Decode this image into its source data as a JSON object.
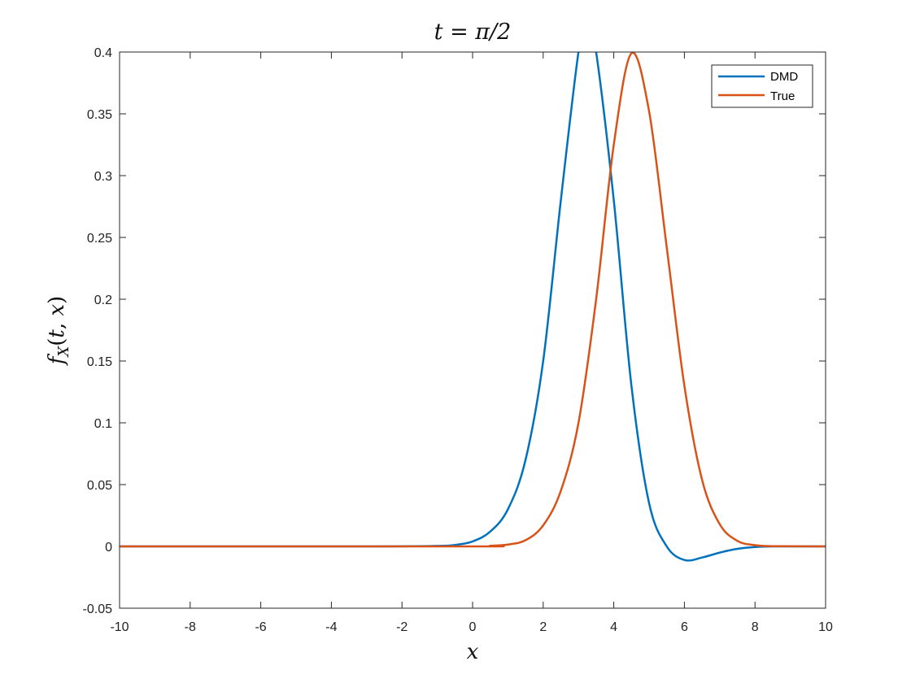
{
  "chart_data": {
    "type": "line",
    "title": "t = π/2",
    "xlabel": "x",
    "ylabel": "f_X(t,x)",
    "xlim": [
      -10,
      10
    ],
    "ylim": [
      -0.05,
      0.4
    ],
    "xticks": [
      -10,
      -8,
      -6,
      -4,
      -2,
      0,
      2,
      4,
      6,
      8,
      10
    ],
    "xtick_labels": [
      "-10",
      "-8",
      "-6",
      "-4",
      "-2",
      "0",
      "2",
      "4",
      "6",
      "8",
      "10"
    ],
    "yticks": [
      -0.05,
      0,
      0.05,
      0.1,
      0.15,
      0.2,
      0.25,
      0.3,
      0.35,
      0.4
    ],
    "ytick_labels": [
      "-0.05",
      "0",
      "0.05",
      "0.1",
      "0.15",
      "0.2",
      "0.25",
      "0.3",
      "0.35",
      "0.4"
    ],
    "grid": false,
    "legend_position": "top-right",
    "series": [
      {
        "name": "DMD",
        "color": "#0072BD",
        "points": [
          [
            -10,
            0
          ],
          [
            -3,
            0
          ],
          [
            -1,
            0.0004
          ],
          [
            -0.5,
            0.0012
          ],
          [
            0,
            0.004
          ],
          [
            0.5,
            0.012
          ],
          [
            1,
            0.03
          ],
          [
            1.5,
            0.07
          ],
          [
            2,
            0.15
          ],
          [
            2.5,
            0.28
          ],
          [
            3,
            0.4
          ],
          [
            3.25,
            0.428
          ],
          [
            3.5,
            0.4
          ],
          [
            4,
            0.28
          ],
          [
            4.5,
            0.13
          ],
          [
            5,
            0.035
          ],
          [
            5.5,
            0.0
          ],
          [
            6,
            -0.011
          ],
          [
            6.5,
            -0.009
          ],
          [
            7,
            -0.005
          ],
          [
            7.5,
            -0.002
          ],
          [
            8,
            -0.0005
          ],
          [
            8.5,
            0
          ],
          [
            10,
            0
          ]
        ]
      },
      {
        "name": "True",
        "color": "#D95319",
        "points": [
          [
            -10,
            0
          ],
          [
            0,
            0
          ],
          [
            0.5,
            0.0005
          ],
          [
            1,
            0.0015
          ],
          [
            1.5,
            0.005
          ],
          [
            2,
            0.017
          ],
          [
            2.5,
            0.045
          ],
          [
            3,
            0.1
          ],
          [
            3.5,
            0.2
          ],
          [
            4,
            0.325
          ],
          [
            4.5,
            0.399
          ],
          [
            5,
            0.352
          ],
          [
            5.5,
            0.242
          ],
          [
            6,
            0.13
          ],
          [
            6.5,
            0.054
          ],
          [
            7,
            0.018
          ],
          [
            7.5,
            0.0045
          ],
          [
            8,
            0.001
          ],
          [
            8.5,
            0.0002
          ],
          [
            10,
            0
          ]
        ]
      }
    ]
  }
}
